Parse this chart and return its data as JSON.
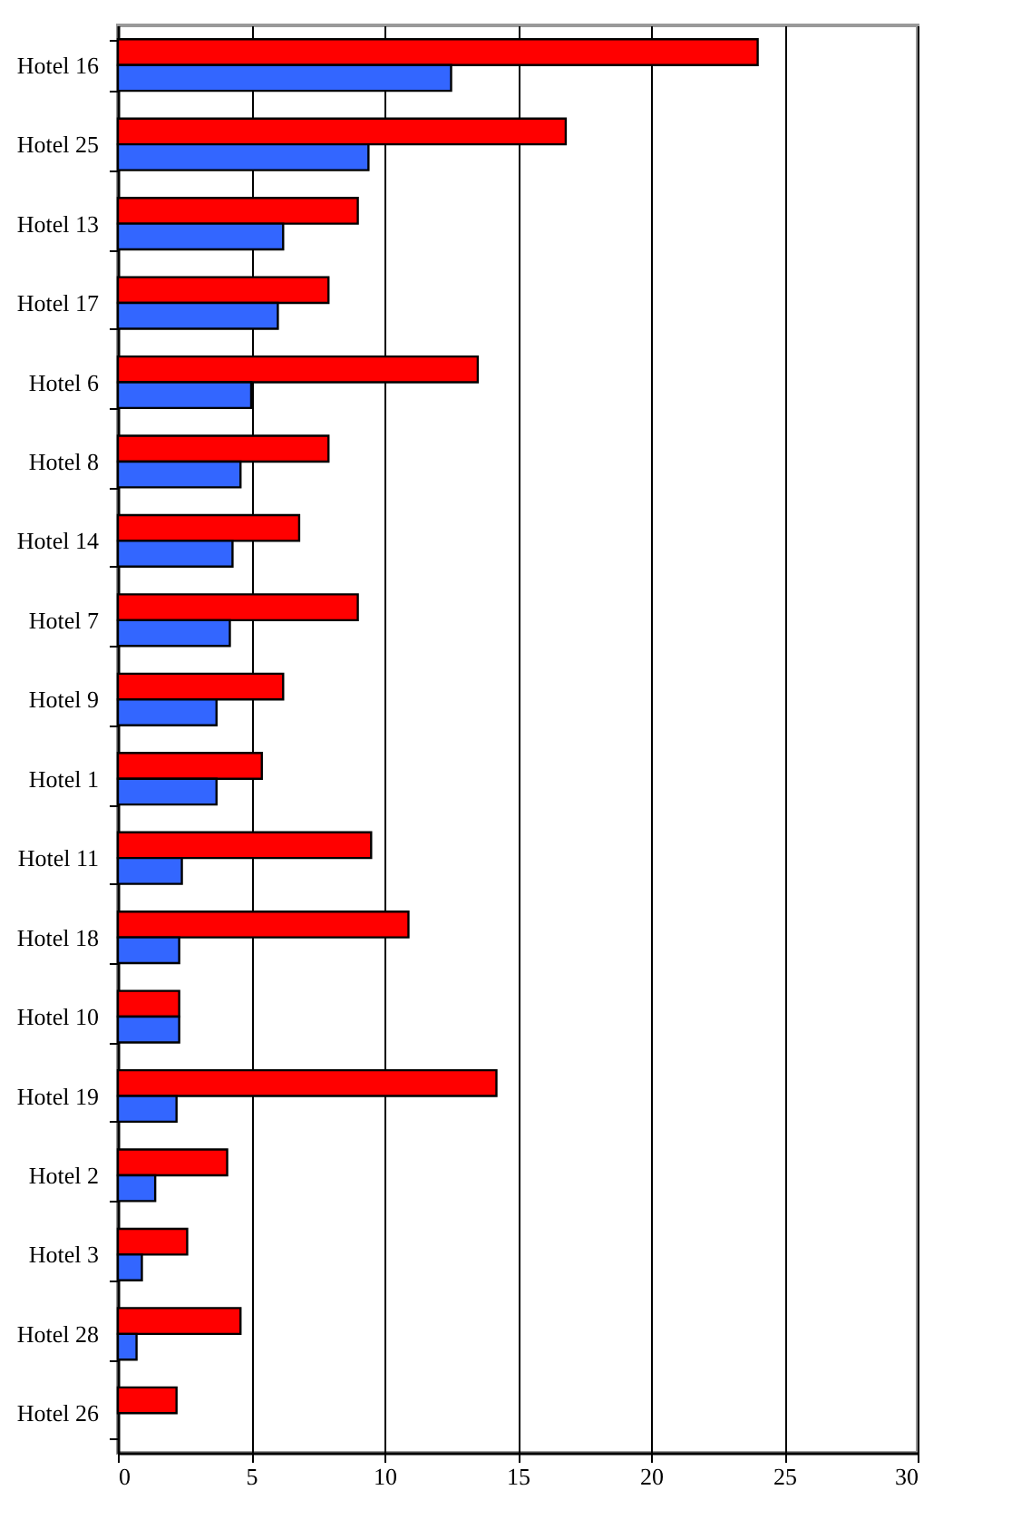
{
  "chart_data": {
    "type": "bar",
    "orientation": "horizontal",
    "categories": [
      "Hotel 16",
      "Hotel 25",
      "Hotel 13",
      "Hotel 17",
      "Hotel 6",
      "Hotel 8",
      "Hotel 14",
      "Hotel 7",
      "Hotel 9",
      "Hotel 1",
      "Hotel 11",
      "Hotel 18",
      "Hotel 10",
      "Hotel 19",
      "Hotel 2",
      "Hotel 3",
      "Hotel 28",
      "Hotel 26"
    ],
    "series": [
      {
        "color": "#ff0000",
        "values": [
          24.0,
          16.8,
          9.0,
          7.9,
          13.5,
          7.9,
          6.8,
          9.0,
          6.2,
          5.4,
          9.5,
          10.9,
          2.3,
          14.2,
          4.1,
          2.6,
          4.6,
          2.2
        ]
      },
      {
        "color": "#3366ff",
        "values": [
          12.5,
          9.4,
          6.2,
          6.0,
          5.0,
          4.6,
          4.3,
          4.2,
          3.7,
          3.7,
          2.4,
          2.3,
          2.3,
          2.2,
          1.4,
          0.9,
          0.7,
          null
        ]
      }
    ],
    "xlim": [
      0,
      30
    ],
    "xticks": [
      0,
      5,
      10,
      15,
      20,
      25,
      30
    ],
    "grid": "x",
    "legend": false
  }
}
